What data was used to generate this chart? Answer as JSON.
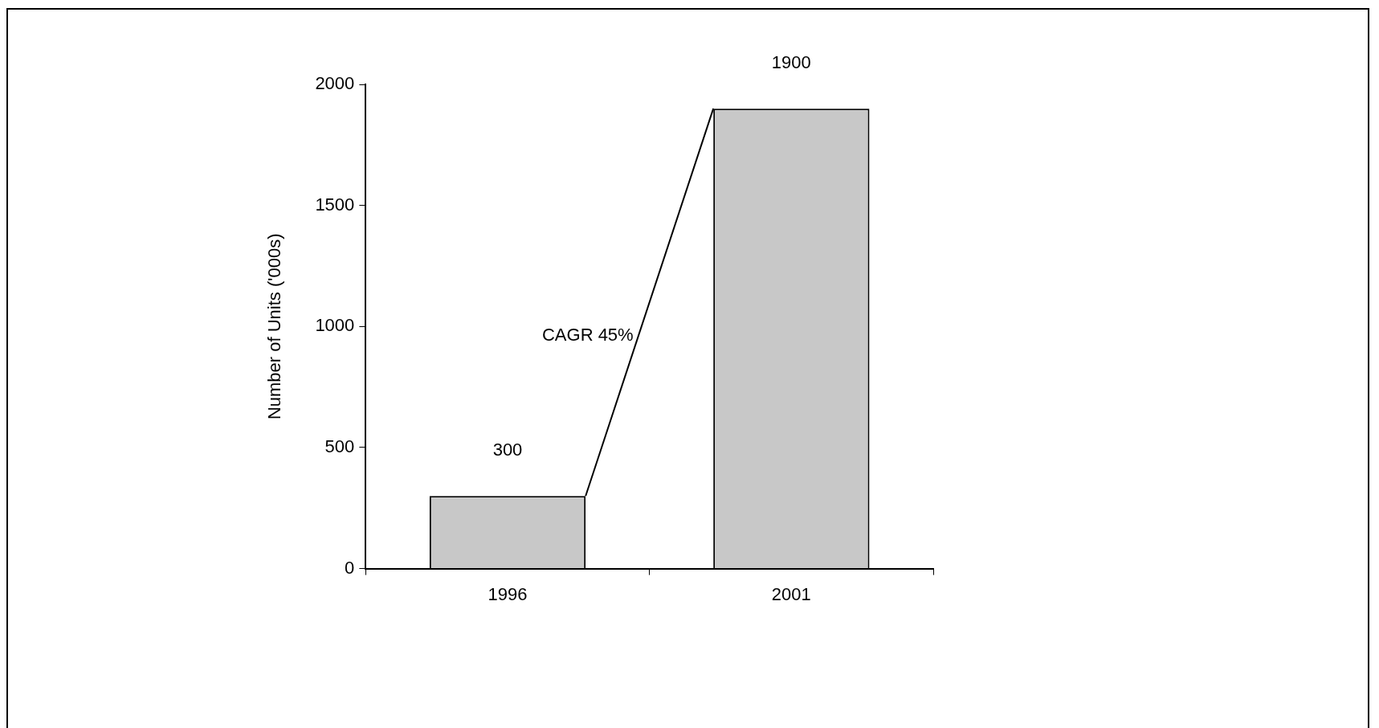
{
  "chart_data": {
    "type": "bar",
    "categories": [
      "1996",
      "2001"
    ],
    "values": [
      300,
      1900
    ],
    "color": "#c8c8c8",
    "ylabel": "Number of Units ('000s)",
    "ylim": [
      0,
      2000
    ],
    "yticks": [
      0,
      500,
      1000,
      1500,
      2000
    ],
    "data_labels": true,
    "grid": false,
    "legend": false,
    "annotations": [
      "CAGR 45%"
    ]
  }
}
